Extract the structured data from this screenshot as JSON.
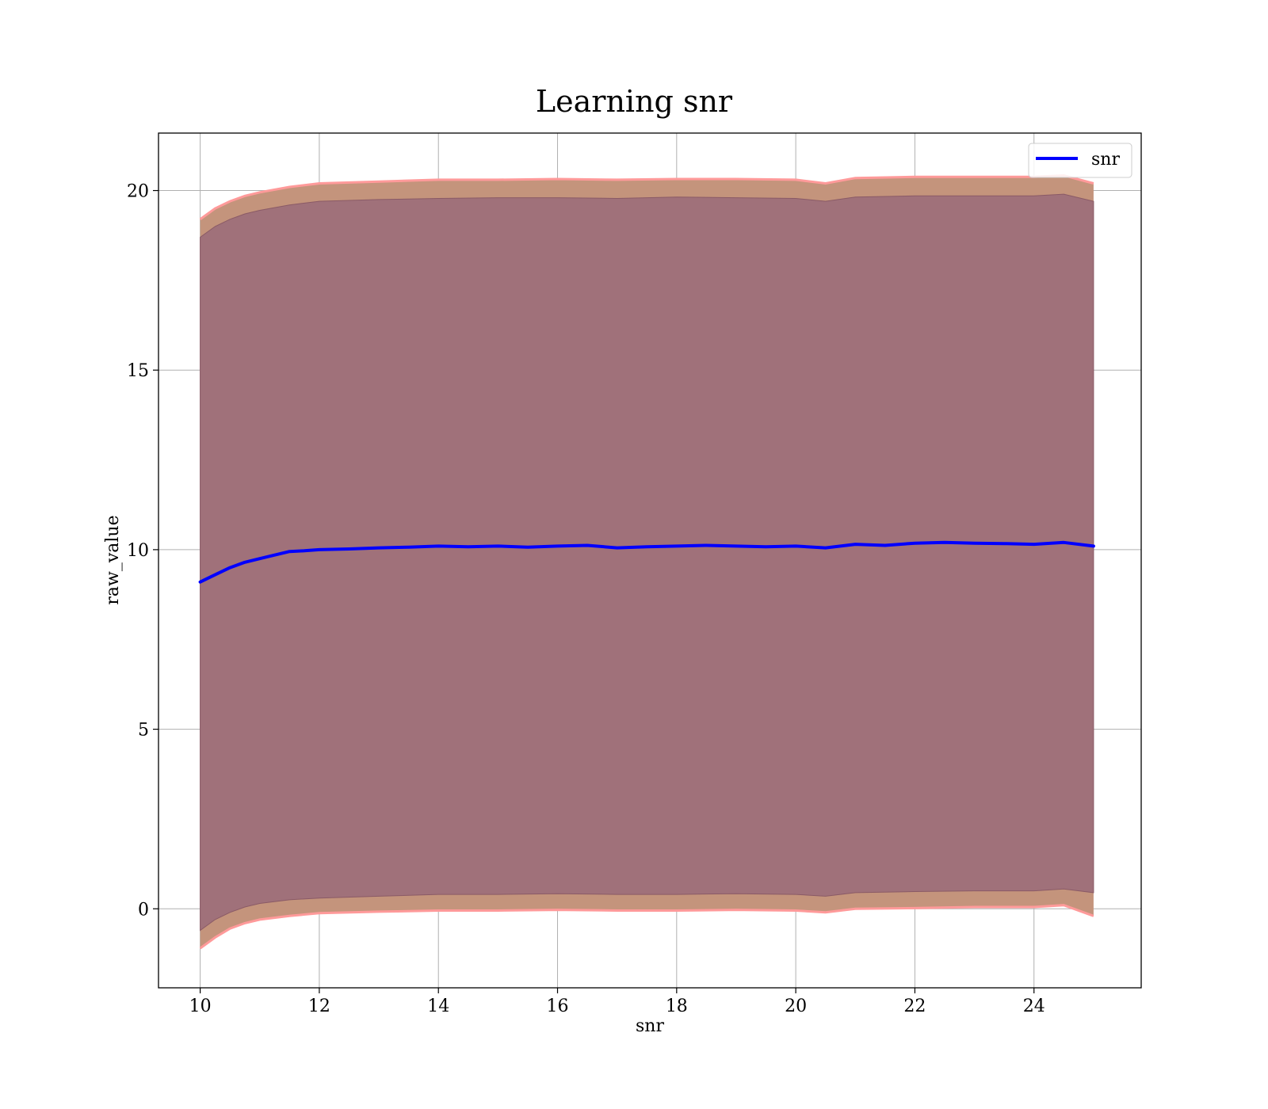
{
  "chart_data": {
    "type": "line",
    "title": "Learning snr",
    "xlabel": "snr",
    "ylabel": "raw_value",
    "xlim": [
      9.3,
      25.8
    ],
    "ylim": [
      -2.2,
      21.6
    ],
    "x_ticks": [
      10,
      12,
      14,
      16,
      18,
      20,
      22,
      24
    ],
    "y_ticks": [
      0,
      5,
      10,
      15,
      20
    ],
    "grid": true,
    "legend_position": "top-right",
    "colors": {
      "line": "#0000ff",
      "band_inner": "#a0717a",
      "band_outer": "#c4947c",
      "band_edge": "#ff9a9a"
    },
    "series": [
      {
        "name": "snr",
        "x": [
          10.0,
          10.25,
          10.5,
          10.75,
          11.0,
          11.25,
          11.5,
          11.75,
          12.0,
          12.5,
          13.0,
          13.5,
          14.0,
          14.5,
          15.0,
          15.5,
          16.0,
          16.5,
          17.0,
          17.5,
          18.0,
          18.5,
          19.0,
          19.5,
          20.0,
          20.5,
          21.0,
          21.5,
          22.0,
          22.5,
          23.0,
          23.5,
          24.0,
          24.5,
          25.0
        ],
        "y": [
          9.1,
          9.3,
          9.5,
          9.65,
          9.75,
          9.85,
          9.95,
          9.97,
          10.0,
          10.02,
          10.05,
          10.07,
          10.1,
          10.08,
          10.1,
          10.07,
          10.1,
          10.12,
          10.05,
          10.08,
          10.1,
          10.12,
          10.1,
          10.08,
          10.1,
          10.05,
          10.15,
          10.12,
          10.18,
          10.2,
          10.18,
          10.17,
          10.15,
          10.2,
          10.1
        ]
      }
    ],
    "bands": [
      {
        "kind": "inner",
        "x": [
          10.0,
          10.25,
          10.5,
          10.75,
          11.0,
          11.5,
          12.0,
          13.0,
          14.0,
          15.0,
          16.0,
          17.0,
          18.0,
          19.0,
          20.0,
          20.5,
          21.0,
          22.0,
          23.0,
          24.0,
          24.5,
          25.0
        ],
        "upper": [
          18.7,
          19.0,
          19.2,
          19.35,
          19.45,
          19.6,
          19.7,
          19.75,
          19.78,
          19.8,
          19.8,
          19.78,
          19.82,
          19.8,
          19.78,
          19.7,
          19.82,
          19.85,
          19.85,
          19.85,
          19.9,
          19.7
        ],
        "lower": [
          -0.6,
          -0.3,
          -0.1,
          0.05,
          0.15,
          0.25,
          0.3,
          0.35,
          0.4,
          0.4,
          0.42,
          0.4,
          0.4,
          0.42,
          0.4,
          0.35,
          0.45,
          0.48,
          0.5,
          0.5,
          0.55,
          0.45
        ]
      },
      {
        "kind": "outer",
        "x": [
          10.0,
          10.25,
          10.5,
          10.75,
          11.0,
          11.5,
          12.0,
          13.0,
          14.0,
          15.0,
          16.0,
          17.0,
          18.0,
          19.0,
          20.0,
          20.5,
          21.0,
          22.0,
          23.0,
          24.0,
          24.5,
          25.0
        ],
        "upper": [
          19.2,
          19.5,
          19.7,
          19.85,
          19.95,
          20.1,
          20.2,
          20.25,
          20.3,
          20.3,
          20.32,
          20.3,
          20.32,
          20.32,
          20.3,
          20.2,
          20.35,
          20.38,
          20.38,
          20.38,
          20.42,
          20.2
        ],
        "lower": [
          -1.1,
          -0.8,
          -0.55,
          -0.4,
          -0.3,
          -0.2,
          -0.12,
          -0.08,
          -0.05,
          -0.05,
          -0.03,
          -0.05,
          -0.05,
          -0.03,
          -0.05,
          -0.1,
          0.0,
          0.02,
          0.05,
          0.05,
          0.1,
          -0.2
        ]
      }
    ]
  }
}
